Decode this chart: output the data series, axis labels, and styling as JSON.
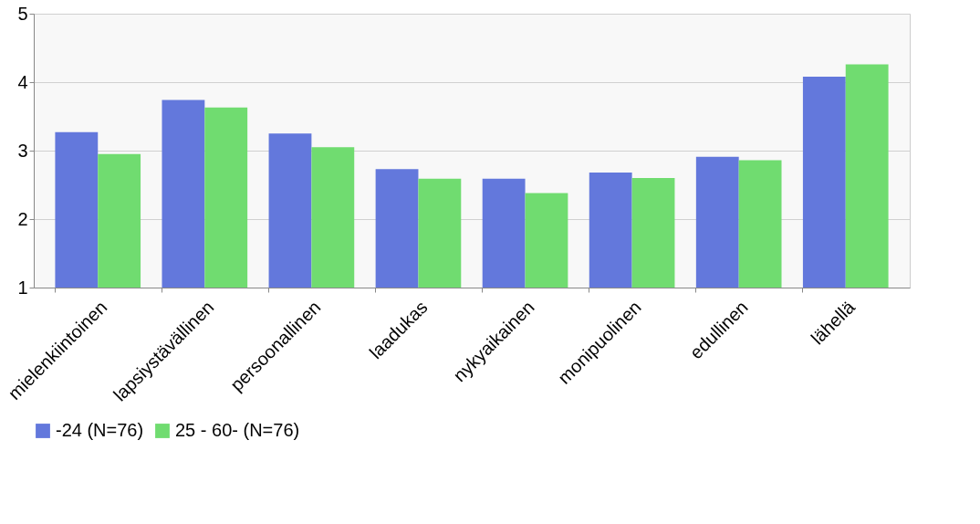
{
  "chart_data": {
    "type": "bar",
    "categories": [
      "mielenkiintoinen",
      "lapsiystävällinen",
      "persoonallinen",
      "laadukas",
      "nykyaikainen",
      "monipuolinen",
      "edullinen",
      "lähellä"
    ],
    "series": [
      {
        "name": "-24 (N=76)",
        "color": "#6378dc",
        "values": [
          3.27,
          3.74,
          3.25,
          2.73,
          2.59,
          2.68,
          2.91,
          4.08
        ]
      },
      {
        "name": "25 - 60- (N=76)",
        "color": "#70dc70",
        "values": [
          2.95,
          3.63,
          3.05,
          2.59,
          2.38,
          2.6,
          2.86,
          4.26
        ]
      }
    ],
    "ylim": [
      1,
      5
    ],
    "yticks": [
      1,
      2,
      3,
      4,
      5
    ],
    "grid": "y",
    "legend": "bottom"
  }
}
